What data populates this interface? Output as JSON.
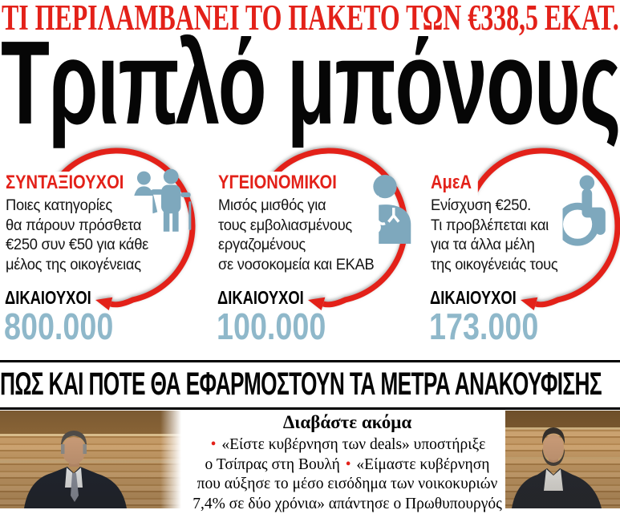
{
  "colors": {
    "red": "#e32119",
    "icon_blue": "#7ea8bd",
    "number_blue": "#8fb8ca"
  },
  "kicker": "ΤΙ ΠΕΡΙΛΑΜΒΑΝΕΙ ΤΟ ΠΑΚΕΤΟ ΤΩΝ €338,5 ΕΚΑΤ.",
  "headline": "Τριπλό μπόνους",
  "categories": [
    {
      "title": "ΣΥΝΤΑΞΙΟΥΧΟΙ",
      "icon": "elderly-couple-icon",
      "description": "Ποιες κατηγορίες\nθα πάρουν πρόσθετα\n€250 συν €50 για κάθε\nμέλος της οικογένειας",
      "beneficiaries_label": "ΔΙΚΑΙΟΥΧΟΙ",
      "beneficiaries_value": "800.000"
    },
    {
      "title": "ΥΓΕΙΟΝΟΜΙΚΟΙ",
      "icon": "doctor-icon",
      "description": "Μισός μισθός για\nτους εμβολιασμένους\nεργαζομένους\nσε νοσοκομεία και ΕΚΑΒ",
      "beneficiaries_label": "ΔΙΚΑΙΟΥΧΟΙ",
      "beneficiaries_value": "100.000"
    },
    {
      "title": "ΑμεΑ",
      "icon": "wheelchair-icon",
      "description": "Ενίσχυση €250.\nΤι προβλέπεται και\nγια τα άλλα μέλη\nτης οικογένειάς τους",
      "beneficiaries_label": "ΔΙΚΑΙΟΥΧΟΙ",
      "beneficiaries_value": "173.000"
    }
  ],
  "section_bar": "ΠΩΣ ΚΑΙ ΠΟΤΕ ΘΑ ΕΦΑΡΜΟΣΤΟΥΝ ΤΑ ΜΕΤΡΑ ΑΝΑΚΟΥΦΙΣΗΣ",
  "read_also": {
    "title": "Διαβάστε ακόμα",
    "lines": [
      "• «Είστε κυβέρνηση των deals» υποστήριξε",
      "ο Τσίπρας στη Βουλή • «Είμαστε κυβέρνηση",
      "που αύξησε το μέσο εισόδημα των νοικοκυριών",
      "7,4% σε δύο χρόνια» απάντησε ο Πρωθυπουργός"
    ]
  }
}
